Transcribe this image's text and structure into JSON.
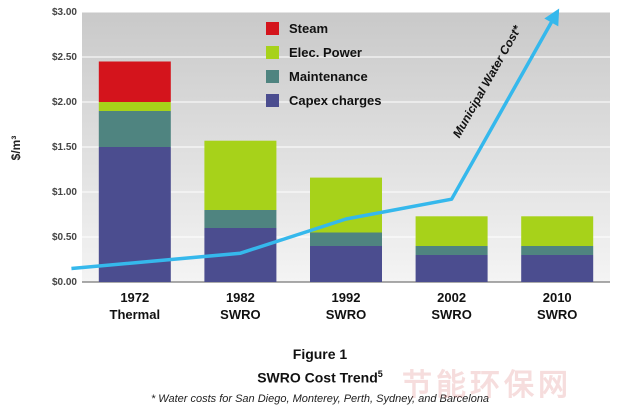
{
  "chart_data": {
    "type": "bar",
    "stacked": true,
    "categories": [
      "1972\nThermal",
      "1982\nSWRO",
      "1992\nSWRO",
      "2002\nSWRO",
      "2010\nSWRO"
    ],
    "series": [
      {
        "name": "Capex charges",
        "values": [
          1.5,
          0.6,
          0.4,
          0.3,
          0.3
        ],
        "color": "#4b4d8f"
      },
      {
        "name": "Maintenance",
        "values": [
          0.4,
          0.2,
          0.15,
          0.1,
          0.1
        ],
        "color": "#4f8480"
      },
      {
        "name": "Elec. Power",
        "values": [
          0.1,
          0.77,
          0.61,
          0.33,
          0.33
        ],
        "color": "#a7d21a"
      },
      {
        "name": "Steam",
        "values": [
          0.45,
          0.0,
          0.0,
          0.0,
          0.0
        ],
        "color": "#d4141c"
      }
    ],
    "line": {
      "name": "Municipal Water Cost*",
      "color": "#35b8ec",
      "points": [
        {
          "x": 1966,
          "y": 0.15
        },
        {
          "x": 1982,
          "y": 0.32
        },
        {
          "x": 1992,
          "y": 0.7
        },
        {
          "x": 2002,
          "y": 0.92
        },
        {
          "x": 2010,
          "y": 3.0
        }
      ]
    },
    "ylabel": "$/m³",
    "ylim": [
      0,
      3.0
    ],
    "yticks": [
      "$0.00",
      "$0.50",
      "$1.00",
      "$1.50",
      "$2.00",
      "$2.50",
      "$3.00"
    ],
    "legend_order": [
      "Steam",
      "Elec. Power",
      "Maintenance",
      "Capex charges"
    ],
    "legend_position": "top-center",
    "grid": true,
    "annotation": "Municipal Water Cost*"
  },
  "caption": {
    "figure_label": "Figure 1",
    "title_text": "SWRO Cost Trend",
    "title_sup": "5",
    "note": "* Water costs for San Diego, Monterey, Perth, Sydney, and Barcelona"
  },
  "watermark": "节能环保网"
}
